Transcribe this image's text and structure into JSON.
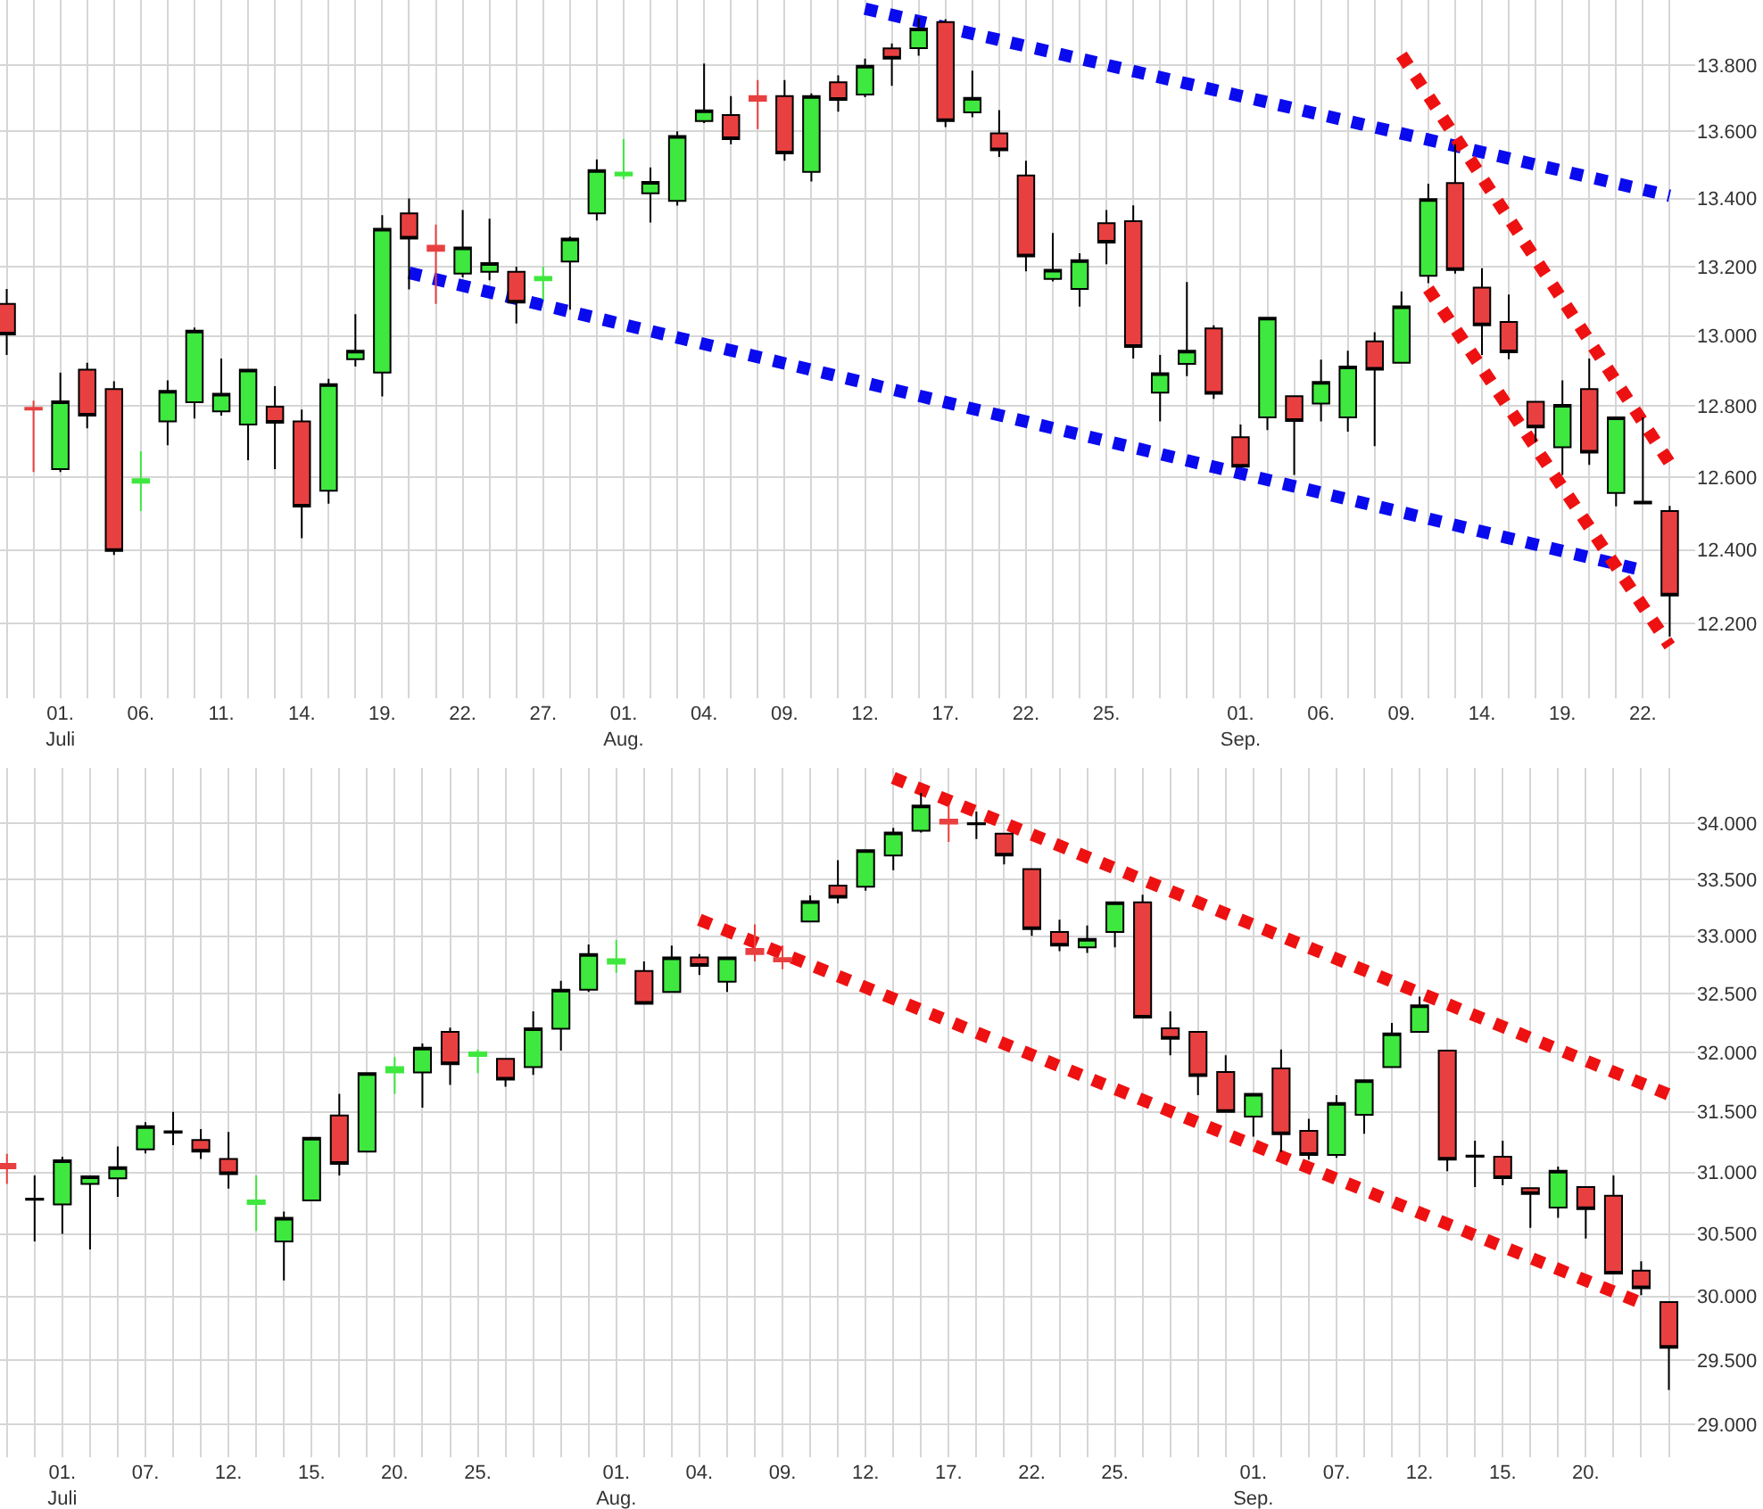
{
  "chart_data": [
    {
      "type": "candlestick",
      "log": true,
      "grid": true,
      "colors": [
        "#e84040",
        "#e84040",
        "#3ee83e",
        "#e84040",
        "#e84040",
        "#3ee83e",
        "#3ee83e",
        "#3ee83e",
        "#3ee83e",
        "#3ee83e",
        "#e84040",
        "#e84040",
        "#3ee83e",
        "#3ee83e",
        "#3ee83e",
        "#e84040",
        "#e84040",
        "#3ee83e",
        "#3ee83e",
        "#e84040",
        "#3ee83e",
        "#3ee83e",
        "#3ee83e",
        "#3ee83e",
        "#3ee83e",
        "#3ee83e",
        "#3ee83e",
        "#e84040",
        "#e84040",
        "#e84040",
        "#3ee83e",
        "#e84040",
        "#3ee83e",
        "#e84040",
        "#3ee83e",
        "#e84040",
        "#3ee83e",
        "#e84040",
        "#e84040",
        "#3ee83e",
        "#3ee83e",
        "#e84040",
        "#e84040",
        "#3ee83e",
        "#3ee83e",
        "#e84040",
        "#e84040",
        "#3ee83e",
        "#e84040",
        "#3ee83e",
        "#3ee83e",
        "#e84040",
        "#3ee83e",
        "#3ee83e",
        "#e84040",
        "#e84040",
        "#e84040",
        "#e84040",
        "#3ee83e",
        "#e84040",
        "#3ee83e",
        "#000000",
        "#e84040"
      ],
      "categories": [
        null,
        null,
        "01.\nJuli",
        null,
        null,
        "06.",
        null,
        null,
        "11.",
        null,
        null,
        "14.",
        null,
        null,
        "19.",
        null,
        null,
        "22.",
        null,
        null,
        "27.",
        null,
        null,
        "01.\nAug.",
        null,
        null,
        "04.",
        null,
        null,
        "09.",
        null,
        null,
        "12.",
        null,
        null,
        "17.",
        null,
        null,
        "22.",
        null,
        null,
        "25.",
        null,
        null,
        null,
        null,
        "01.\nSep.",
        null,
        null,
        "06.",
        null,
        null,
        "09.",
        null,
        null,
        "14.",
        null,
        null,
        "19.",
        null,
        null,
        "22.",
        null
      ],
      "ohlc": [
        [
          13092,
          13135,
          12945,
          13004
        ],
        [
          12795,
          12815,
          12615,
          12790
        ],
        [
          12623,
          12895,
          12615,
          12813
        ],
        [
          12903,
          12923,
          12737,
          12773
        ],
        [
          12848,
          12870,
          12386,
          12397
        ],
        [
          12585,
          12673,
          12507,
          12595
        ],
        [
          12757,
          12873,
          12690,
          12843
        ],
        [
          12811,
          13024,
          12765,
          13015
        ],
        [
          12785,
          12935,
          12773,
          12835
        ],
        [
          12748,
          12903,
          12648,
          12903
        ],
        [
          12798,
          12856,
          12623,
          12753
        ],
        [
          12757,
          12790,
          12432,
          12519
        ],
        [
          12563,
          12877,
          12527,
          12862
        ],
        [
          12933,
          13062,
          12912,
          12957
        ],
        [
          12895,
          13351,
          12827,
          13311
        ],
        [
          13356,
          13400,
          13134,
          13282
        ],
        [
          13261,
          13323,
          13092,
          13246
        ],
        [
          13180,
          13366,
          13169,
          13256
        ],
        [
          13185,
          13340,
          13160,
          13210
        ],
        [
          13185,
          13200,
          13035,
          13096
        ],
        [
          13160,
          13200,
          13104,
          13170
        ],
        [
          13215,
          13288,
          13075,
          13282
        ],
        [
          13356,
          13516,
          13335,
          13484
        ],
        [
          13468,
          13577,
          13457,
          13477
        ],
        [
          13415,
          13492,
          13329,
          13449
        ],
        [
          13393,
          13600,
          13379,
          13586
        ],
        [
          13631,
          13805,
          13625,
          13663
        ],
        [
          13649,
          13706,
          13561,
          13577
        ],
        [
          13706,
          13755,
          13607,
          13692
        ],
        [
          13706,
          13755,
          13512,
          13534
        ],
        [
          13479,
          13714,
          13450,
          13706
        ],
        [
          13748,
          13769,
          13659,
          13695
        ],
        [
          13711,
          13820,
          13703,
          13798
        ],
        [
          13851,
          13866,
          13737,
          13820
        ],
        [
          13852,
          13945,
          13829,
          13912
        ],
        [
          13932,
          13941,
          13613,
          13631
        ],
        [
          13657,
          13783,
          13642,
          13701
        ],
        [
          13594,
          13664,
          13523,
          13543
        ],
        [
          13468,
          13512,
          13186,
          13230
        ],
        [
          13164,
          13298,
          13157,
          13191
        ],
        [
          13135,
          13239,
          13084,
          13219
        ],
        [
          13327,
          13366,
          13207,
          13270
        ],
        [
          13333,
          13380,
          12935,
          12968
        ],
        [
          12838,
          12945,
          12757,
          12893
        ],
        [
          12920,
          13155,
          12885,
          12957
        ],
        [
          13021,
          13030,
          12820,
          12835
        ],
        [
          12712,
          12748,
          12630,
          12630
        ],
        [
          12768,
          13052,
          12732,
          13052
        ],
        [
          12828,
          12828,
          12607,
          12758
        ],
        [
          12807,
          12932,
          12757,
          12868
        ],
        [
          12768,
          12957,
          12728,
          12912
        ],
        [
          12984,
          13010,
          12687,
          12903
        ],
        [
          12923,
          13128,
          12923,
          13085
        ],
        [
          13173,
          13444,
          13152,
          13398
        ],
        [
          13446,
          13561,
          13180,
          13190
        ],
        [
          13139,
          13195,
          12945,
          13030
        ],
        [
          13040,
          13119,
          12933,
          12953
        ],
        [
          12812,
          12812,
          12698,
          12740
        ],
        [
          12684,
          12873,
          12607,
          12803
        ],
        [
          12848,
          12935,
          12635,
          12669
        ],
        [
          12557,
          12768,
          12520,
          12768
        ],
        [
          12533,
          12768,
          12528,
          12528
        ],
        [
          12507,
          12521,
          12165,
          12276
        ]
      ],
      "series": [
        {
          "type": "line",
          "line_style": "dotted",
          "color": "#0a0aee",
          "values": [
            null,
            null,
            null,
            null,
            null,
            null,
            null,
            null,
            null,
            null,
            null,
            null,
            null,
            null,
            null,
            null,
            null,
            null,
            null,
            null,
            null,
            null,
            null,
            null,
            null,
            null,
            null,
            null,
            null,
            null,
            null,
            null,
            13973,
            null,
            null,
            null,
            null,
            null,
            null,
            null,
            null,
            null,
            null,
            null,
            null,
            null,
            null,
            null,
            null,
            null,
            null,
            null,
            null,
            null,
            null,
            null,
            null,
            null,
            null,
            null,
            null,
            null,
            13408
          ]
        },
        {
          "type": "line",
          "line_style": "dotted",
          "color": "#0a0aee",
          "values": [
            null,
            null,
            null,
            null,
            null,
            null,
            null,
            null,
            null,
            null,
            null,
            null,
            null,
            null,
            null,
            13182,
            null,
            null,
            null,
            null,
            null,
            null,
            null,
            null,
            null,
            null,
            null,
            null,
            null,
            null,
            null,
            null,
            null,
            null,
            null,
            null,
            null,
            null,
            null,
            null,
            null,
            null,
            null,
            null,
            null,
            null,
            null,
            null,
            null,
            null,
            null,
            null,
            null,
            null,
            null,
            null,
            null,
            null,
            null,
            null,
            null,
            12344,
            null
          ]
        },
        {
          "type": "line",
          "line_style": "dotted",
          "color": "#ee1111",
          "values": [
            null,
            null,
            null,
            null,
            null,
            null,
            null,
            null,
            null,
            null,
            null,
            null,
            null,
            null,
            null,
            null,
            null,
            null,
            null,
            null,
            null,
            null,
            null,
            null,
            null,
            null,
            null,
            null,
            null,
            null,
            null,
            null,
            null,
            null,
            null,
            null,
            null,
            null,
            null,
            null,
            null,
            null,
            null,
            null,
            null,
            null,
            null,
            null,
            null,
            null,
            null,
            null,
            13831,
            null,
            null,
            null,
            null,
            null,
            null,
            null,
            null,
            null,
            12640
          ]
        },
        {
          "type": "line",
          "line_style": "dotted",
          "color": "#ee1111",
          "values": [
            null,
            null,
            null,
            null,
            null,
            null,
            null,
            null,
            null,
            null,
            null,
            null,
            null,
            null,
            null,
            null,
            null,
            null,
            null,
            null,
            null,
            null,
            null,
            null,
            null,
            null,
            null,
            null,
            null,
            null,
            null,
            null,
            null,
            null,
            null,
            null,
            null,
            null,
            null,
            null,
            null,
            null,
            null,
            null,
            null,
            null,
            null,
            null,
            null,
            null,
            null,
            null,
            null,
            13135,
            null,
            null,
            null,
            null,
            null,
            null,
            null,
            null,
            12140
          ]
        }
      ],
      "ylim": [
        12000,
        14000
      ],
      "yticks": [
        {
          "value": 12200,
          "label": "12.200"
        },
        {
          "value": 12400,
          "label": "12.400"
        },
        {
          "value": 12600,
          "label": "12.600"
        },
        {
          "value": 12800,
          "label": "12.800"
        },
        {
          "value": 13000,
          "label": "13.000"
        },
        {
          "value": 13200,
          "label": "13.200"
        },
        {
          "value": 13400,
          "label": "13.400"
        },
        {
          "value": 13600,
          "label": "13.600"
        },
        {
          "value": 13800,
          "label": "13.800"
        }
      ]
    },
    {
      "type": "candlestick",
      "log": true,
      "grid": true,
      "colors": [
        "#e84040",
        "#000000",
        "#3ee83e",
        "#3ee83e",
        "#3ee83e",
        "#3ee83e",
        "#000000",
        "#e84040",
        "#e84040",
        "#3ee83e",
        "#3ee83e",
        "#3ee83e",
        "#e84040",
        "#3ee83e",
        "#3ee83e",
        "#3ee83e",
        "#e84040",
        "#3ee83e",
        "#e84040",
        "#3ee83e",
        "#3ee83e",
        "#3ee83e",
        "#3ee83e",
        "#e84040",
        "#3ee83e",
        "#e84040",
        "#3ee83e",
        "#e84040",
        "#e84040",
        "#3ee83e",
        "#e84040",
        "#3ee83e",
        "#3ee83e",
        "#3ee83e",
        "#e84040",
        "#000000",
        "#e84040",
        "#e84040",
        "#e84040",
        "#3ee83e",
        "#3ee83e",
        "#e84040",
        "#e84040",
        "#e84040",
        "#e84040",
        "#3ee83e",
        "#e84040",
        "#e84040",
        "#3ee83e",
        "#3ee83e",
        "#3ee83e",
        "#3ee83e",
        "#e84040",
        "#000000",
        "#e84040",
        "#e84040",
        "#3ee83e",
        "#e84040",
        "#e84040",
        "#e84040",
        "#e84040"
      ],
      "categories": [
        null,
        null,
        "01.\nJuli",
        null,
        null,
        "07.",
        null,
        null,
        "12.",
        null,
        null,
        "15.",
        null,
        null,
        "20.",
        null,
        null,
        "25.",
        null,
        null,
        null,
        null,
        "01.\nAug.",
        null,
        null,
        "04.",
        null,
        null,
        "09.",
        null,
        null,
        "12.",
        null,
        null,
        "17.",
        null,
        null,
        "22.",
        null,
        null,
        "25.",
        null,
        null,
        null,
        null,
        "01.\nSep.",
        null,
        null,
        "07.",
        null,
        null,
        "12.",
        null,
        null,
        "15.",
        null,
        null,
        "20.",
        null,
        null,
        null
      ],
      "ohlc": [
        [
          31071,
          31152,
          30905,
          31033
        ],
        [
          30785,
          30976,
          30439,
          30776
        ],
        [
          30738,
          31129,
          30500,
          31100
        ],
        [
          30905,
          30976,
          30374,
          30967
        ],
        [
          30952,
          31214,
          30800,
          31043
        ],
        [
          31190,
          31414,
          31157,
          31381
        ],
        [
          31338,
          31500,
          31224,
          31328
        ],
        [
          31267,
          31357,
          31110,
          31171
        ],
        [
          31110,
          31333,
          30867,
          30986
        ],
        [
          30743,
          30976,
          30524,
          30771
        ],
        [
          30439,
          30681,
          30126,
          30629
        ],
        [
          30771,
          31286,
          30771,
          31286
        ],
        [
          31471,
          31650,
          30976,
          31071
        ],
        [
          31171,
          31825,
          31171,
          31825
        ],
        [
          31830,
          31960,
          31650,
          31875
        ],
        [
          31830,
          32075,
          31535,
          32040
        ],
        [
          32175,
          32210,
          31725,
          31900
        ],
        [
          31970,
          32025,
          31825,
          32000
        ],
        [
          31945,
          31945,
          31710,
          31770
        ],
        [
          31875,
          32350,
          31810,
          32205
        ],
        [
          32200,
          32612,
          32015,
          32534
        ],
        [
          32534,
          32926,
          32515,
          32843
        ],
        [
          32760,
          32966,
          32681,
          32799
        ],
        [
          32696,
          32779,
          32415,
          32415
        ],
        [
          32515,
          32917,
          32515,
          32814
        ],
        [
          32814,
          32843,
          32662,
          32740
        ],
        [
          32603,
          32814,
          32515,
          32814
        ],
        [
          32887,
          33102,
          32779,
          32843
        ],
        [
          32809,
          32917,
          32711,
          32779
        ],
        [
          33128,
          33357,
          33128,
          33306
        ],
        [
          33444,
          33668,
          33286,
          33337
        ],
        [
          33434,
          33758,
          33398,
          33758
        ],
        [
          33711,
          33958,
          33579,
          33916
        ],
        [
          33932,
          34274,
          33916,
          34158
        ],
        [
          34032,
          34158,
          33832,
          33995
        ],
        [
          34000,
          34105,
          33858,
          33990
        ],
        [
          33905,
          33905,
          33632,
          33711
        ],
        [
          33589,
          33589,
          33000,
          33061
        ],
        [
          33036,
          33143,
          32868,
          32917
        ],
        [
          32902,
          33092,
          32853,
          32975
        ],
        [
          33036,
          33296,
          32902,
          33296
        ],
        [
          33296,
          33362,
          32295,
          32295
        ],
        [
          32205,
          32350,
          31975,
          32115
        ],
        [
          32175,
          32175,
          31640,
          31800
        ],
        [
          31835,
          31975,
          31500,
          31500
        ],
        [
          31462,
          31650,
          31295,
          31650
        ],
        [
          31865,
          32025,
          31167,
          31314
        ],
        [
          31343,
          31443,
          31105,
          31143
        ],
        [
          31143,
          31640,
          31119,
          31575
        ],
        [
          31476,
          31765,
          31319,
          31765
        ],
        [
          31875,
          32250,
          31875,
          32160
        ],
        [
          32175,
          32475,
          32175,
          32400
        ],
        [
          32015,
          32015,
          31010,
          31105
        ],
        [
          31138,
          31262,
          30881,
          31128
        ],
        [
          31129,
          31262,
          30895,
          30953
        ],
        [
          30871,
          30871,
          30548,
          30824
        ],
        [
          30714,
          31048,
          30629,
          31014
        ],
        [
          30881,
          30881,
          30463,
          30700
        ],
        [
          30810,
          30976,
          30182,
          30182
        ],
        [
          30205,
          30280,
          30009,
          30065
        ],
        [
          29955,
          29955,
          29266,
          29595
        ]
      ],
      "series": [
        {
          "type": "line",
          "line_style": "dotted",
          "color": "#ee1111",
          "values": [
            null,
            null,
            null,
            null,
            null,
            null,
            null,
            null,
            null,
            null,
            null,
            null,
            null,
            null,
            null,
            null,
            null,
            null,
            null,
            null,
            null,
            null,
            null,
            null,
            null,
            null,
            null,
            null,
            null,
            null,
            null,
            null,
            34410,
            null,
            null,
            null,
            null,
            null,
            null,
            null,
            null,
            null,
            null,
            null,
            null,
            null,
            null,
            null,
            null,
            null,
            null,
            null,
            null,
            null,
            null,
            null,
            null,
            null,
            null,
            null,
            31645
          ]
        },
        {
          "type": "line",
          "line_style": "dotted",
          "color": "#ee1111",
          "values": [
            null,
            null,
            null,
            null,
            null,
            null,
            null,
            null,
            null,
            null,
            null,
            null,
            null,
            null,
            null,
            null,
            null,
            null,
            null,
            null,
            null,
            null,
            null,
            null,
            null,
            33143,
            null,
            null,
            null,
            null,
            null,
            null,
            null,
            null,
            null,
            null,
            null,
            null,
            null,
            null,
            null,
            null,
            null,
            null,
            null,
            null,
            null,
            null,
            null,
            null,
            null,
            null,
            null,
            null,
            null,
            null,
            null,
            null,
            null,
            29948,
            null
          ]
        }
      ],
      "ylim": [
        28750,
        34500
      ],
      "yticks": [
        {
          "value": 29000,
          "label": "29.000"
        },
        {
          "value": 29500,
          "label": "29.500"
        },
        {
          "value": 30000,
          "label": "30.000"
        },
        {
          "value": 30500,
          "label": "30.500"
        },
        {
          "value": 31000,
          "label": "31.000"
        },
        {
          "value": 31500,
          "label": "31.500"
        },
        {
          "value": 32000,
          "label": "32.000"
        },
        {
          "value": 32500,
          "label": "32.500"
        },
        {
          "value": 33000,
          "label": "33.000"
        },
        {
          "value": 33500,
          "label": "33.500"
        },
        {
          "value": 34000,
          "label": "34.000"
        }
      ]
    }
  ]
}
